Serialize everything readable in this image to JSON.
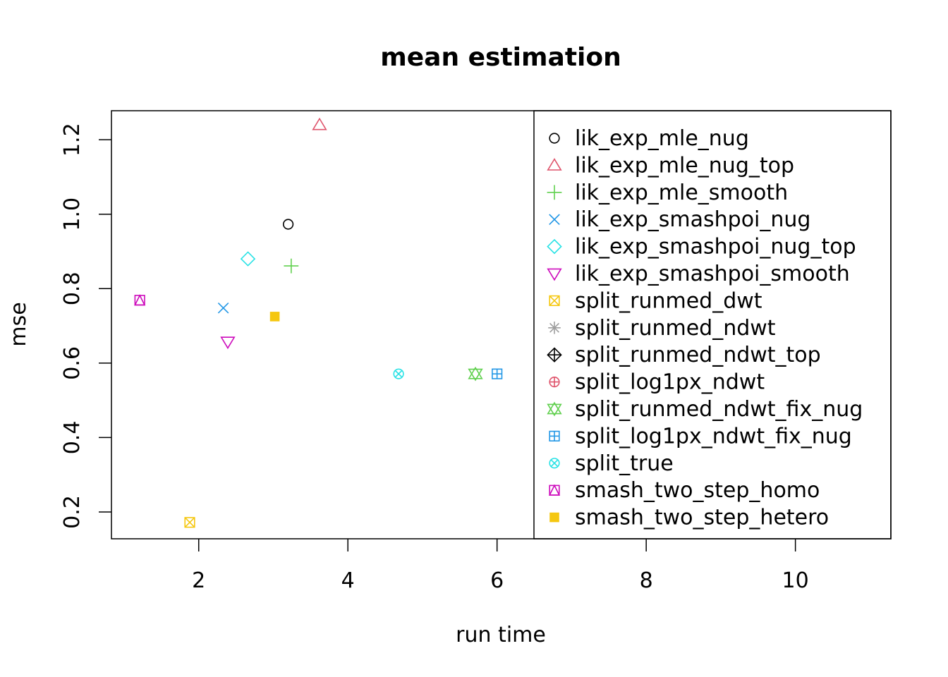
{
  "chart_data": {
    "type": "scatter",
    "title": "mean estimation",
    "xlabel": "run time",
    "ylabel": "mse",
    "xlim": [
      0.83,
      11.28
    ],
    "ylim": [
      0.128,
      1.278
    ],
    "xticks": [
      2,
      4,
      6,
      8,
      10
    ],
    "yticks": [
      0.2,
      0.4,
      0.6,
      0.8,
      1.0,
      1.2
    ],
    "xtick_labels": [
      "2",
      "4",
      "6",
      "8",
      "10"
    ],
    "ytick_labels": [
      "0.2",
      "0.4",
      "0.6",
      "0.8",
      "1.0",
      "1.2"
    ],
    "grid": false,
    "legend_position": "right",
    "series": [
      {
        "name": "lik_exp_mle_nug",
        "pch": 1,
        "color": "#000000",
        "x": 3.2,
        "y": 0.973
      },
      {
        "name": "lik_exp_mle_nug_top",
        "pch": 2,
        "color": "#DF536B",
        "x": 3.62,
        "y": 1.24
      },
      {
        "name": "lik_exp_mle_smooth",
        "pch": 3,
        "color": "#61D04F",
        "x": 3.24,
        "y": 0.861
      },
      {
        "name": "lik_exp_smashpoi_nug",
        "pch": 4,
        "color": "#2297E6",
        "x": 2.33,
        "y": 0.748
      },
      {
        "name": "lik_exp_smashpoi_nug_top",
        "pch": 5,
        "color": "#28E2E5",
        "x": 2.66,
        "y": 0.88
      },
      {
        "name": "lik_exp_smashpoi_smooth",
        "pch": 6,
        "color": "#CD0BBC",
        "x": 2.39,
        "y": 0.657
      },
      {
        "name": "split_runmed_dwt",
        "pch": 7,
        "color": "#F5C710",
        "x": 1.88,
        "y": 0.172
      },
      {
        "name": "split_runmed_ndwt",
        "pch": 8,
        "color": "#9E9E9E",
        "x": null,
        "y": null
      },
      {
        "name": "split_runmed_ndwt_top",
        "pch": 9,
        "color": "#000000",
        "x": null,
        "y": null
      },
      {
        "name": "split_log1px_ndwt",
        "pch": 10,
        "color": "#DF536B",
        "x": null,
        "y": null
      },
      {
        "name": "split_runmed_ndwt_fix_nug",
        "pch": 11,
        "color": "#61D04F",
        "x": 5.71,
        "y": 0.571
      },
      {
        "name": "split_log1px_ndwt_fix_nug",
        "pch": 12,
        "color": "#2297E6",
        "x": 6.0,
        "y": 0.571
      },
      {
        "name": "split_true",
        "pch": 13,
        "color": "#28E2E5",
        "x": 4.68,
        "y": 0.571
      },
      {
        "name": "smash_two_step_homo",
        "pch": 14,
        "color": "#CD0BBC",
        "x": 1.21,
        "y": 0.769
      },
      {
        "name": "smash_two_step_hetero",
        "pch": 15,
        "color": "#F5C710",
        "x": 3.02,
        "y": 0.725
      }
    ]
  }
}
